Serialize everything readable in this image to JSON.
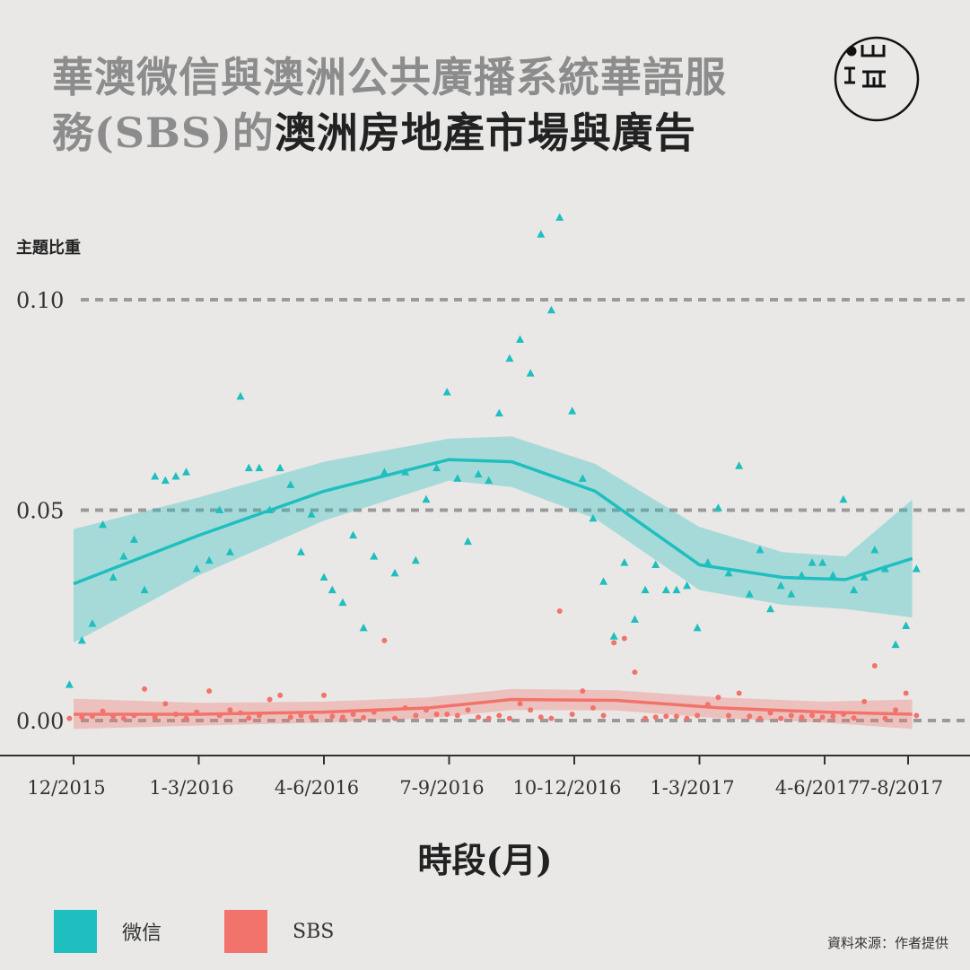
{
  "title": {
    "part1": "華澳微信與澳洲公共廣播系統華語服",
    "part2_gray": "務(SBS)的",
    "part2_dark": "澳洲房地產市場與廣告"
  },
  "logo": {
    "icon": "initium-logo-icon"
  },
  "source": "資料來源：作者提供",
  "colors": {
    "wechat": "#1fbfbf",
    "sbs": "#f2736b",
    "grid": "#9a9a9a",
    "axis": "#333333"
  },
  "chart_data": {
    "type": "scatter",
    "ylabel": "主題比重",
    "xlabel": "時段(月)",
    "yticks": [
      "0.00",
      "0.05",
      "0.10"
    ],
    "ytick_values": [
      0,
      0.05,
      0.1
    ],
    "ylim": [
      -0.008,
      0.118
    ],
    "xlim": [
      0,
      20.2
    ],
    "xticks": [
      "12/2015",
      "1-3/2016",
      "4-6/2016",
      "7-9/2016",
      "10-12/2016",
      "1-3/2017",
      "4-6/2017",
      "7-8/2017"
    ],
    "xtick_values": [
      0,
      3,
      6,
      9,
      12,
      15,
      18,
      20
    ],
    "grid": "dashed at y ticks",
    "legend": "bottom-left",
    "series": [
      {
        "name": "微信",
        "marker": "triangle",
        "points": [
          [
            -0.1,
            0.0085
          ],
          [
            0.2,
            0.019
          ],
          [
            0.45,
            0.023
          ],
          [
            0.7,
            0.0465
          ],
          [
            0.95,
            0.034
          ],
          [
            1.2,
            0.039
          ],
          [
            1.45,
            0.043
          ],
          [
            1.7,
            0.031
          ],
          [
            1.95,
            0.058
          ],
          [
            2.2,
            0.057
          ],
          [
            2.45,
            0.058
          ],
          [
            2.7,
            0.059
          ],
          [
            2.95,
            0.036
          ],
          [
            3.25,
            0.038
          ],
          [
            3.5,
            0.05
          ],
          [
            3.75,
            0.04
          ],
          [
            4.0,
            0.077
          ],
          [
            4.2,
            0.06
          ],
          [
            4.45,
            0.06
          ],
          [
            4.7,
            0.05
          ],
          [
            4.95,
            0.06
          ],
          [
            5.2,
            0.056
          ],
          [
            5.45,
            0.04
          ],
          [
            5.7,
            0.049
          ],
          [
            6.0,
            0.034
          ],
          [
            6.2,
            0.031
          ],
          [
            6.45,
            0.028
          ],
          [
            6.7,
            0.044
          ],
          [
            6.95,
            0.022
          ],
          [
            7.2,
            0.039
          ],
          [
            7.45,
            0.059
          ],
          [
            7.7,
            0.035
          ],
          [
            7.95,
            0.059
          ],
          [
            8.2,
            0.038
          ],
          [
            8.45,
            0.0525
          ],
          [
            8.7,
            0.06
          ],
          [
            8.95,
            0.078
          ],
          [
            9.2,
            0.0575
          ],
          [
            9.45,
            0.0425
          ],
          [
            9.7,
            0.0585
          ],
          [
            9.95,
            0.057
          ],
          [
            10.2,
            0.073
          ],
          [
            10.45,
            0.086
          ],
          [
            10.7,
            0.0905
          ],
          [
            10.95,
            0.0825
          ],
          [
            11.2,
            0.1155
          ],
          [
            11.45,
            0.0975
          ],
          [
            11.65,
            0.1195
          ],
          [
            11.95,
            0.0735
          ],
          [
            12.2,
            0.0575
          ],
          [
            12.45,
            0.048
          ],
          [
            12.7,
            0.033
          ],
          [
            12.95,
            0.02
          ],
          [
            13.2,
            0.0375
          ],
          [
            13.45,
            0.024
          ],
          [
            13.7,
            0.031
          ],
          [
            13.95,
            0.037
          ],
          [
            14.2,
            0.031
          ],
          [
            14.45,
            0.031
          ],
          [
            14.7,
            0.032
          ],
          [
            14.95,
            0.022
          ],
          [
            15.2,
            0.0375
          ],
          [
            15.45,
            0.0505
          ],
          [
            15.7,
            0.035
          ],
          [
            15.95,
            0.0605
          ],
          [
            16.2,
            0.03
          ],
          [
            16.45,
            0.0405
          ],
          [
            16.7,
            0.0265
          ],
          [
            16.95,
            0.032
          ],
          [
            17.2,
            0.03
          ],
          [
            17.45,
            0.0345
          ],
          [
            17.7,
            0.0375
          ],
          [
            17.95,
            0.0375
          ],
          [
            18.2,
            0.0345
          ],
          [
            18.45,
            0.0525
          ],
          [
            18.7,
            0.031
          ],
          [
            18.95,
            0.034
          ],
          [
            19.2,
            0.0405
          ],
          [
            19.45,
            0.036
          ],
          [
            19.7,
            0.018
          ],
          [
            19.95,
            0.0225
          ],
          [
            20.2,
            0.036
          ]
        ],
        "trend": [
          [
            0,
            0.0325
          ],
          [
            3,
            0.044
          ],
          [
            6,
            0.0545
          ],
          [
            9,
            0.062
          ],
          [
            10.5,
            0.0615
          ],
          [
            12.5,
            0.0545
          ],
          [
            15,
            0.037
          ],
          [
            17,
            0.034
          ],
          [
            18.5,
            0.0335
          ],
          [
            20.1,
            0.0385
          ]
        ],
        "band_upper": [
          [
            0,
            0.0455
          ],
          [
            3,
            0.053
          ],
          [
            6,
            0.0615
          ],
          [
            9,
            0.067
          ],
          [
            10.5,
            0.0675
          ],
          [
            12.5,
            0.061
          ],
          [
            15,
            0.046
          ],
          [
            17,
            0.04
          ],
          [
            18.5,
            0.039
          ],
          [
            20.1,
            0.0525
          ]
        ],
        "band_lower": [
          [
            0,
            0.0185
          ],
          [
            3,
            0.0345
          ],
          [
            6,
            0.0475
          ],
          [
            9,
            0.057
          ],
          [
            10.5,
            0.0555
          ],
          [
            12.5,
            0.048
          ],
          [
            15,
            0.031
          ],
          [
            17,
            0.0275
          ],
          [
            18.5,
            0.0265
          ],
          [
            20.1,
            0.0245
          ]
        ]
      },
      {
        "name": "SBS",
        "marker": "dot",
        "points": [
          [
            -0.1,
            0.0005
          ],
          [
            0.2,
            0.0008
          ],
          [
            0.45,
            0.001
          ],
          [
            0.7,
            0.0022
          ],
          [
            0.95,
            0.001
          ],
          [
            1.2,
            0.0005
          ],
          [
            1.45,
            0.0012
          ],
          [
            1.7,
            0.0075
          ],
          [
            1.95,
            0.0008
          ],
          [
            2.2,
            0.004
          ],
          [
            2.45,
            0.0015
          ],
          [
            2.7,
            0.0005
          ],
          [
            2.95,
            0.002
          ],
          [
            3.25,
            0.007
          ],
          [
            3.5,
            0.0012
          ],
          [
            3.75,
            0.0025
          ],
          [
            4.0,
            0.0018
          ],
          [
            4.2,
            0.0006
          ],
          [
            4.45,
            0.0012
          ],
          [
            4.7,
            0.005
          ],
          [
            4.95,
            0.006
          ],
          [
            5.2,
            0.0008
          ],
          [
            5.45,
            0.0012
          ],
          [
            5.7,
            0.0008
          ],
          [
            6.0,
            0.006
          ],
          [
            6.2,
            0.001
          ],
          [
            6.45,
            0.0008
          ],
          [
            6.7,
            0.0015
          ],
          [
            6.95,
            0.0007
          ],
          [
            7.2,
            0.002
          ],
          [
            7.45,
            0.019
          ],
          [
            7.7,
            0.0005
          ],
          [
            7.95,
            0.003
          ],
          [
            8.2,
            0.0012
          ],
          [
            8.45,
            0.0025
          ],
          [
            8.7,
            0.0015
          ],
          [
            8.95,
            0.0015
          ],
          [
            9.2,
            0.0012
          ],
          [
            9.45,
            0.0025
          ],
          [
            9.7,
            0.0008
          ],
          [
            9.95,
            0.0005
          ],
          [
            10.2,
            0.0012
          ],
          [
            10.45,
            0.0005
          ],
          [
            10.7,
            0.004
          ],
          [
            10.95,
            0.0025
          ],
          [
            11.2,
            0.0008
          ],
          [
            11.45,
            0.0005
          ],
          [
            11.65,
            0.026
          ],
          [
            11.95,
            0.0015
          ],
          [
            12.2,
            0.007
          ],
          [
            12.45,
            0.003
          ],
          [
            12.7,
            0.0012
          ],
          [
            12.95,
            0.0185
          ],
          [
            13.2,
            0.0195
          ],
          [
            13.45,
            0.0115
          ],
          [
            13.7,
            0.0005
          ],
          [
            13.95,
            0.0008
          ],
          [
            14.2,
            0.001
          ],
          [
            14.45,
            0.001
          ],
          [
            14.7,
            0.0005
          ],
          [
            14.95,
            0.0012
          ],
          [
            15.2,
            0.0038
          ],
          [
            15.45,
            0.0055
          ],
          [
            15.7,
            0.0012
          ],
          [
            15.95,
            0.0065
          ],
          [
            16.2,
            0.001
          ],
          [
            16.45,
            0.0005
          ],
          [
            16.7,
            0.0018
          ],
          [
            16.95,
            0.0005
          ],
          [
            17.2,
            0.0012
          ],
          [
            17.45,
            0.0008
          ],
          [
            17.7,
            0.0012
          ],
          [
            17.95,
            0.0008
          ],
          [
            18.2,
            0.001
          ],
          [
            18.45,
            0.0015
          ],
          [
            18.7,
            0.0006
          ],
          [
            18.95,
            0.0045
          ],
          [
            19.2,
            0.013
          ],
          [
            19.45,
            0.0005
          ],
          [
            19.7,
            0.0025
          ],
          [
            19.95,
            0.0065
          ],
          [
            20.2,
            0.0012
          ]
        ],
        "trend": [
          [
            0,
            0.0015
          ],
          [
            3,
            0.0015
          ],
          [
            6,
            0.002
          ],
          [
            8.5,
            0.003
          ],
          [
            10.5,
            0.005
          ],
          [
            13,
            0.0048
          ],
          [
            15.5,
            0.003
          ],
          [
            18,
            0.002
          ],
          [
            20.1,
            0.0015
          ]
        ],
        "band_upper": [
          [
            0,
            0.0052
          ],
          [
            3,
            0.0042
          ],
          [
            6,
            0.0045
          ],
          [
            8.5,
            0.0055
          ],
          [
            10.5,
            0.0075
          ],
          [
            13,
            0.0072
          ],
          [
            15.5,
            0.0055
          ],
          [
            18,
            0.0045
          ],
          [
            20.1,
            0.005
          ]
        ],
        "band_lower": [
          [
            0,
            -0.002
          ],
          [
            3,
            -0.0012
          ],
          [
            6,
            -0.0005
          ],
          [
            8.5,
            0.0005
          ],
          [
            10.5,
            0.0025
          ],
          [
            13,
            0.0024
          ],
          [
            15.5,
            0.0005
          ],
          [
            18,
            -0.0005
          ],
          [
            20.1,
            -0.002
          ]
        ]
      }
    ]
  }
}
